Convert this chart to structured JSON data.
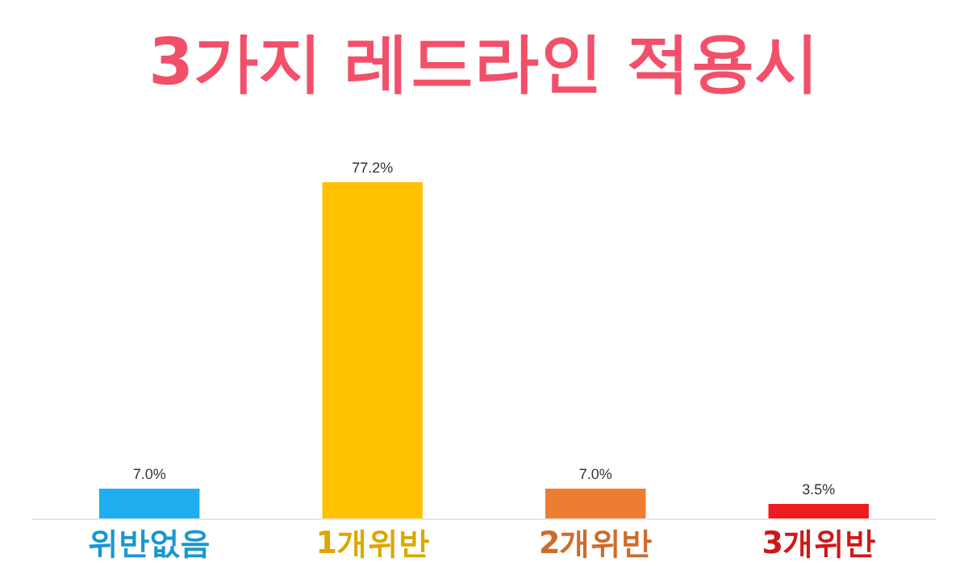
{
  "chart_data": {
    "type": "bar",
    "title": "3가지 레드라인 적용시",
    "categories": [
      "위반없음",
      "1개위반",
      "2개위반",
      "3개위반"
    ],
    "values": [
      7.0,
      77.2,
      7.0,
      3.5
    ],
    "colors": [
      "#1eaef0",
      "#ffc000",
      "#ed7d31",
      "#ee1c1c"
    ],
    "value_labels": [
      "7.0%",
      "77.2%",
      "7.0%",
      "3.5%"
    ]
  }
}
